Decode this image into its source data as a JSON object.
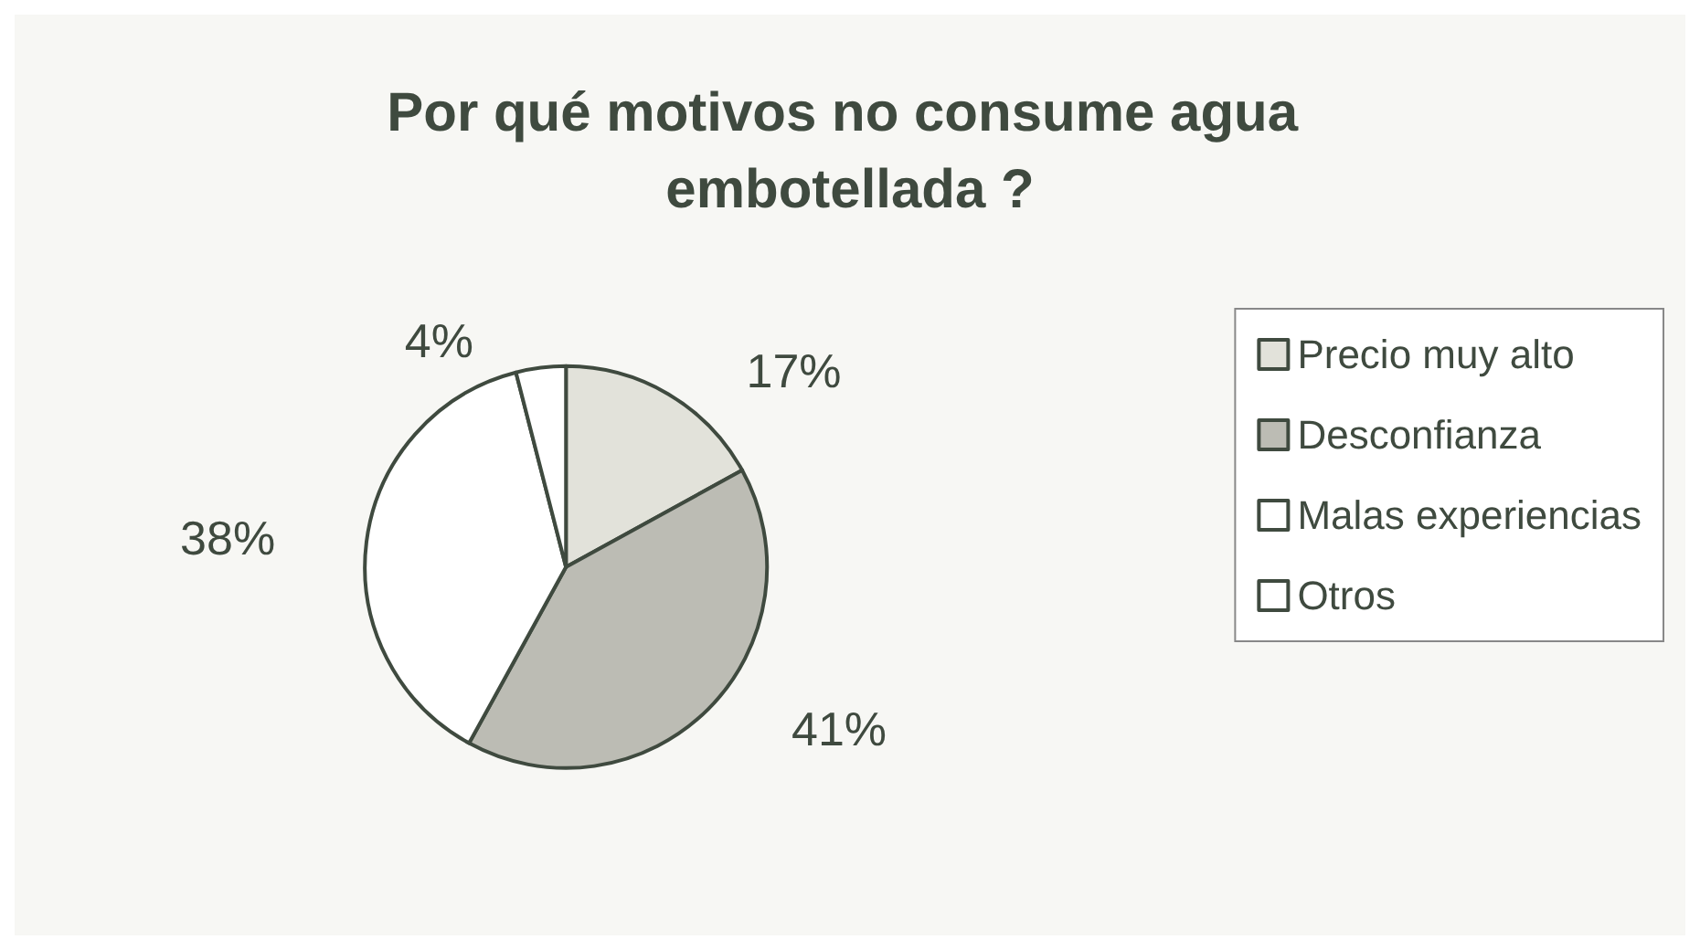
{
  "chart_data": {
    "type": "pie",
    "title": "Por qué motivos no consume agua embotellada ?",
    "categories": [
      "Precio muy alto",
      "Desconfianza",
      "Malas experiencias",
      "Otros"
    ],
    "values": [
      17,
      41,
      38,
      4
    ],
    "value_labels": [
      "17%",
      "41%",
      "38%",
      "4%"
    ],
    "colors": [
      "#e2e2da",
      "#bcbcb4",
      "#ffffff",
      "#ffffff"
    ],
    "legend": "right"
  }
}
